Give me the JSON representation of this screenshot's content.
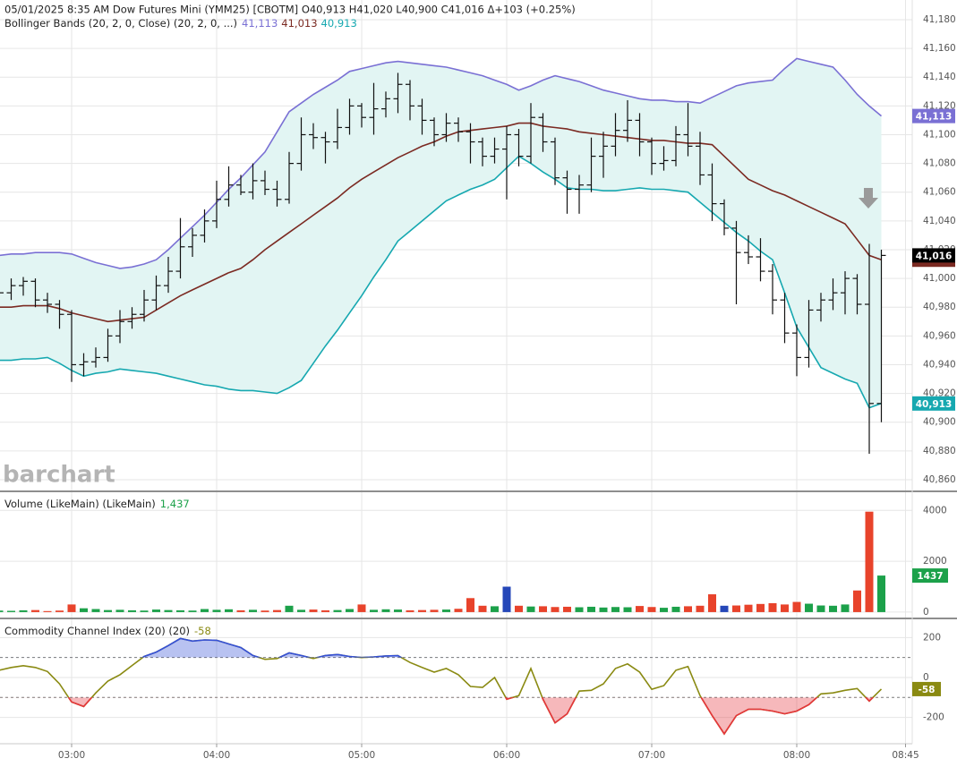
{
  "chart_data": [
    {
      "type": "ohlc",
      "title": "05/01/2025  8:35 AM Dow Futures Mini (YMM25) [CBOTM] O40,913 H41,020 L40,900 C41,016 Δ+103 (+0.25%)",
      "subtitle": "Bollinger Bands (20, 2, 0, Close)  (20, 2, 0, ...)",
      "watermark": "barchart",
      "x": [
        "02:30",
        "02:35",
        "02:40",
        "02:45",
        "02:50",
        "02:55",
        "03:00",
        "03:05",
        "03:10",
        "03:15",
        "03:20",
        "03:25",
        "03:30",
        "03:35",
        "03:40",
        "03:45",
        "03:50",
        "03:55",
        "04:00",
        "04:05",
        "04:10",
        "04:15",
        "04:20",
        "04:25",
        "04:30",
        "04:35",
        "04:40",
        "04:45",
        "04:50",
        "04:55",
        "05:00",
        "05:05",
        "05:10",
        "05:15",
        "05:20",
        "05:25",
        "05:30",
        "05:35",
        "05:40",
        "05:45",
        "05:50",
        "05:55",
        "06:00",
        "06:05",
        "06:10",
        "06:15",
        "06:20",
        "06:25",
        "06:30",
        "06:35",
        "06:40",
        "06:45",
        "06:50",
        "06:55",
        "07:00",
        "07:05",
        "07:10",
        "07:15",
        "07:20",
        "07:25",
        "07:30",
        "07:35",
        "07:40",
        "07:45",
        "07:50",
        "07:55",
        "08:00",
        "08:05",
        "08:10",
        "08:15",
        "08:20",
        "08:25",
        "08:30",
        "08:35"
      ],
      "open": [
        40985,
        40990,
        40995,
        40998,
        40985,
        40982,
        40975,
        40940,
        40942,
        40945,
        40960,
        40970,
        40975,
        40985,
        40995,
        41005,
        41022,
        41030,
        41040,
        41055,
        41065,
        41060,
        41068,
        41062,
        41055,
        41080,
        41100,
        41098,
        41095,
        41105,
        41120,
        41112,
        41118,
        41125,
        41135,
        41120,
        41110,
        41100,
        41108,
        41102,
        41095,
        41085,
        41090,
        41100,
        41085,
        41112,
        41095,
        41070,
        41062,
        41065,
        41085,
        41092,
        41103,
        41110,
        41095,
        41080,
        41082,
        41100,
        41092,
        41072,
        41052,
        41035,
        41018,
        41015,
        41005,
        40985,
        40962,
        40945,
        40978,
        40985,
        40990,
        41000,
        40982,
        40913
      ],
      "high": [
        40998,
        41000,
        41001,
        41000,
        40990,
        40985,
        40978,
        40948,
        40952,
        40965,
        40978,
        40980,
        40992,
        41002,
        41015,
        41042,
        41035,
        41048,
        41068,
        41078,
        41072,
        41080,
        41075,
        41068,
        41088,
        41112,
        41108,
        41102,
        41118,
        41125,
        41122,
        41136,
        41130,
        41143,
        41138,
        41125,
        41112,
        41115,
        41112,
        41108,
        41098,
        41098,
        41106,
        41104,
        41122,
        41115,
        41098,
        41075,
        41072,
        41098,
        41102,
        41115,
        41124,
        41115,
        41098,
        41092,
        41106,
        41122,
        41102,
        41080,
        41055,
        41040,
        41030,
        41028,
        41010,
        40990,
        40968,
        40985,
        40990,
        41000,
        41005,
        41003,
        41024,
        41020
      ],
      "low": [
        40980,
        40985,
        40988,
        40980,
        40976,
        40965,
        40928,
        40932,
        40938,
        40942,
        40955,
        40965,
        40970,
        40978,
        40990,
        41000,
        41015,
        41025,
        41035,
        41050,
        41058,
        41055,
        41058,
        41050,
        41052,
        41075,
        41090,
        41080,
        41090,
        41100,
        41105,
        41100,
        41112,
        41115,
        41110,
        41100,
        41092,
        41095,
        41095,
        41080,
        41078,
        41080,
        41055,
        41078,
        41080,
        41088,
        41065,
        41045,
        41045,
        41060,
        41070,
        41085,
        41095,
        41085,
        41072,
        41075,
        41078,
        41085,
        41065,
        41040,
        41030,
        40982,
        41010,
        40998,
        40975,
        40955,
        40932,
        40938,
        40970,
        40978,
        40975,
        40975,
        40878,
        40900
      ],
      "close": [
        40990,
        40995,
        40998,
        40985,
        40982,
        40975,
        40940,
        40942,
        40945,
        40960,
        40970,
        40975,
        40985,
        40995,
        41005,
        41022,
        41030,
        41040,
        41055,
        41065,
        41060,
        41068,
        41062,
        41055,
        41080,
        41100,
        41098,
        41095,
        41105,
        41120,
        41112,
        41118,
        41125,
        41135,
        41120,
        41110,
        41100,
        41108,
        41102,
        41095,
        41085,
        41090,
        41100,
        41085,
        41112,
        41095,
        41070,
        41062,
        41065,
        41085,
        41092,
        41103,
        41110,
        41095,
        41080,
        41082,
        41100,
        41092,
        41072,
        41052,
        41035,
        41018,
        41015,
        41005,
        40985,
        40962,
        40945,
        40978,
        40985,
        40990,
        41000,
        40982,
        40913,
        41016
      ],
      "close_label": "41,016",
      "color": "#111111",
      "badge_color": "#000000",
      "bands": [
        {
          "color": "#7a70d4",
          "last_label": "41,113",
          "values": [
            41016,
            41017,
            41017,
            41018,
            41018,
            41018,
            41017,
            41014,
            41011,
            41009,
            41007,
            41008,
            41010,
            41013,
            41020,
            41028,
            41036,
            41044,
            41053,
            41062,
            41070,
            41079,
            41088,
            41102,
            41116,
            41122,
            41128,
            41133,
            41138,
            41144,
            41146,
            41148,
            41150,
            41151,
            41150,
            41149,
            41148,
            41147,
            41145,
            41143,
            41141,
            41138,
            41135,
            41131,
            41134,
            41138,
            41141,
            41139,
            41137,
            41134,
            41131,
            41129,
            41127,
            41125,
            41124,
            41124,
            41123,
            41123,
            41122,
            41126,
            41130,
            41134,
            41136,
            41137,
            41138,
            41146,
            41153,
            41151,
            41149,
            41147,
            41138,
            41128,
            41120,
            41113
          ]
        },
        {
          "color": "#7b2a22",
          "last_label": "41,013",
          "values": [
            40980,
            40980,
            40981,
            40981,
            40981,
            40979,
            40976,
            40974,
            40972,
            40970,
            40971,
            40972,
            40973,
            40978,
            40983,
            40988,
            40992,
            40996,
            41000,
            41004,
            41007,
            41013,
            41020,
            41026,
            41032,
            41038,
            41044,
            41050,
            41056,
            41063,
            41069,
            41074,
            41079,
            41084,
            41088,
            41092,
            41095,
            41099,
            41102,
            41103,
            41104,
            41105,
            41106,
            41108,
            41108,
            41106,
            41105,
            41104,
            41102,
            41101,
            41100,
            41099,
            41098,
            41097,
            41096,
            41096,
            41095,
            41094,
            41094,
            41093,
            41085,
            41077,
            41069,
            41065,
            41061,
            41058,
            41054,
            41050,
            41046,
            41042,
            41038,
            41027,
            41016,
            41013
          ]
        },
        {
          "color": "#16a8b0",
          "last_label": "40,913",
          "values": [
            40943,
            40943,
            40944,
            40944,
            40945,
            40941,
            40936,
            40932,
            40934,
            40935,
            40937,
            40936,
            40935,
            40934,
            40932,
            40930,
            40928,
            40926,
            40925,
            40923,
            40922,
            40922,
            40921,
            40920,
            40924,
            40929,
            40941,
            40953,
            40964,
            40976,
            40988,
            41001,
            41013,
            41026,
            41033,
            41040,
            41047,
            41054,
            41058,
            41062,
            41065,
            41069,
            41077,
            41085,
            41080,
            41074,
            41069,
            41063,
            41062,
            41062,
            41061,
            41061,
            41062,
            41063,
            41062,
            41062,
            41061,
            41060,
            41053,
            41046,
            41039,
            41032,
            41026,
            41019,
            41013,
            40990,
            40966,
            40952,
            40938,
            40934,
            40930,
            40927,
            40910,
            40913
          ]
        }
      ],
      "band_fill": "#e2f5f3",
      "ylim": [
        40852.5,
        41193.7
      ],
      "yticks": [
        {
          "value": 40860,
          "label": "40,860"
        },
        {
          "value": 40880,
          "label": "40,880"
        },
        {
          "value": 40900,
          "label": "40,900"
        },
        {
          "value": 40920,
          "label": "40,920"
        },
        {
          "value": 40940,
          "label": "40,940"
        },
        {
          "value": 40960,
          "label": "40,960"
        },
        {
          "value": 40980,
          "label": "40,980"
        },
        {
          "value": 41000,
          "label": "41,000"
        },
        {
          "value": 41020,
          "label": "41,020"
        },
        {
          "value": 41040,
          "label": "41,040"
        },
        {
          "value": 41060,
          "label": "41,060"
        },
        {
          "value": 41080,
          "label": "41,080"
        },
        {
          "value": 41100,
          "label": "41,100"
        },
        {
          "value": 41120,
          "label": "41,120"
        },
        {
          "value": 41140,
          "label": "41,140"
        },
        {
          "value": 41160,
          "label": "41,160"
        },
        {
          "value": 41180,
          "label": "41,180"
        }
      ],
      "grid": true
    },
    {
      "type": "bar",
      "title": "Volume (LikeMain)  (LikeMain)",
      "last_label": "1,437",
      "label_color": "#1ca14a",
      "values": [
        60,
        50,
        70,
        80,
        40,
        60,
        300,
        150,
        120,
        80,
        90,
        70,
        60,
        100,
        80,
        70,
        60,
        120,
        90,
        110,
        70,
        90,
        60,
        80,
        250,
        90,
        100,
        70,
        80,
        120,
        300,
        90,
        110,
        100,
        70,
        80,
        90,
        100,
        130,
        550,
        250,
        230,
        1000,
        250,
        220,
        230,
        200,
        210,
        190,
        210,
        180,
        200,
        190,
        240,
        200,
        170,
        210,
        230,
        250,
        700,
        250,
        260,
        290,
        320,
        350,
        300,
        400,
        330,
        260,
        250,
        300,
        850,
        3950,
        1437
      ],
      "colors": [
        "#1ca14a",
        "#1ca14a",
        "#1ca14a",
        "#e8432b",
        "#e8432b",
        "#e8432b",
        "#e8432b",
        "#1ca14a",
        "#1ca14a",
        "#1ca14a",
        "#1ca14a",
        "#1ca14a",
        "#1ca14a",
        "#1ca14a",
        "#1ca14a",
        "#1ca14a",
        "#1ca14a",
        "#1ca14a",
        "#1ca14a",
        "#1ca14a",
        "#e8432b",
        "#1ca14a",
        "#e8432b",
        "#e8432b",
        "#1ca14a",
        "#1ca14a",
        "#e8432b",
        "#e8432b",
        "#1ca14a",
        "#1ca14a",
        "#e8432b",
        "#1ca14a",
        "#1ca14a",
        "#1ca14a",
        "#e8432b",
        "#e8432b",
        "#e8432b",
        "#1ca14a",
        "#e8432b",
        "#e8432b",
        "#e8432b",
        "#1ca14a",
        "#2547b8",
        "#e8432b",
        "#1ca14a",
        "#e8432b",
        "#e8432b",
        "#e8432b",
        "#1ca14a",
        "#1ca14a",
        "#1ca14a",
        "#1ca14a",
        "#1ca14a",
        "#e8432b",
        "#e8432b",
        "#1ca14a",
        "#1ca14a",
        "#e8432b",
        "#e8432b",
        "#e8432b",
        "#2547b8",
        "#e8432b",
        "#e8432b",
        "#e8432b",
        "#e8432b",
        "#e8432b",
        "#e8432b",
        "#1ca14a",
        "#1ca14a",
        "#1ca14a",
        "#1ca14a",
        "#e8432b",
        "#e8432b",
        "#1ca14a"
      ],
      "ylim": [
        -214,
        4714
      ],
      "yticks": [
        0,
        2000,
        4000
      ],
      "grid": true
    },
    {
      "type": "cci",
      "title": "Commodity Channel Index (20)  (20)",
      "color": "#8a8a12",
      "values": [
        36,
        50,
        59,
        50,
        30,
        -32,
        -123,
        -145,
        -77,
        -18,
        14,
        60,
        105,
        127,
        160,
        195,
        182,
        188,
        186,
        168,
        150,
        110,
        91,
        95,
        123,
        110,
        95,
        110,
        115,
        105,
        100,
        103,
        108,
        109,
        75,
        50,
        27,
        45,
        14,
        -45,
        -50,
        0,
        -109,
        -91,
        45,
        -109,
        -227,
        -182,
        -68,
        -64,
        -32,
        45,
        68,
        27,
        -59,
        -41,
        36,
        55,
        -91,
        -191,
        -282,
        -191,
        -159,
        -159,
        -168,
        -182,
        -168,
        -136,
        -82,
        -77,
        -64,
        -55,
        -118,
        -58
      ],
      "levels": [
        100,
        -100
      ],
      "upper_color": "#3550d8",
      "lower_color": "#e5353b",
      "ylim": [
        -327,
        291
      ],
      "yticks": [
        -200,
        0,
        200
      ],
      "grid": true
    }
  ],
  "x_axis": {
    "ticks": [
      "03:00",
      "04:00",
      "05:00",
      "06:00",
      "07:00",
      "08:00",
      "08:45"
    ]
  }
}
